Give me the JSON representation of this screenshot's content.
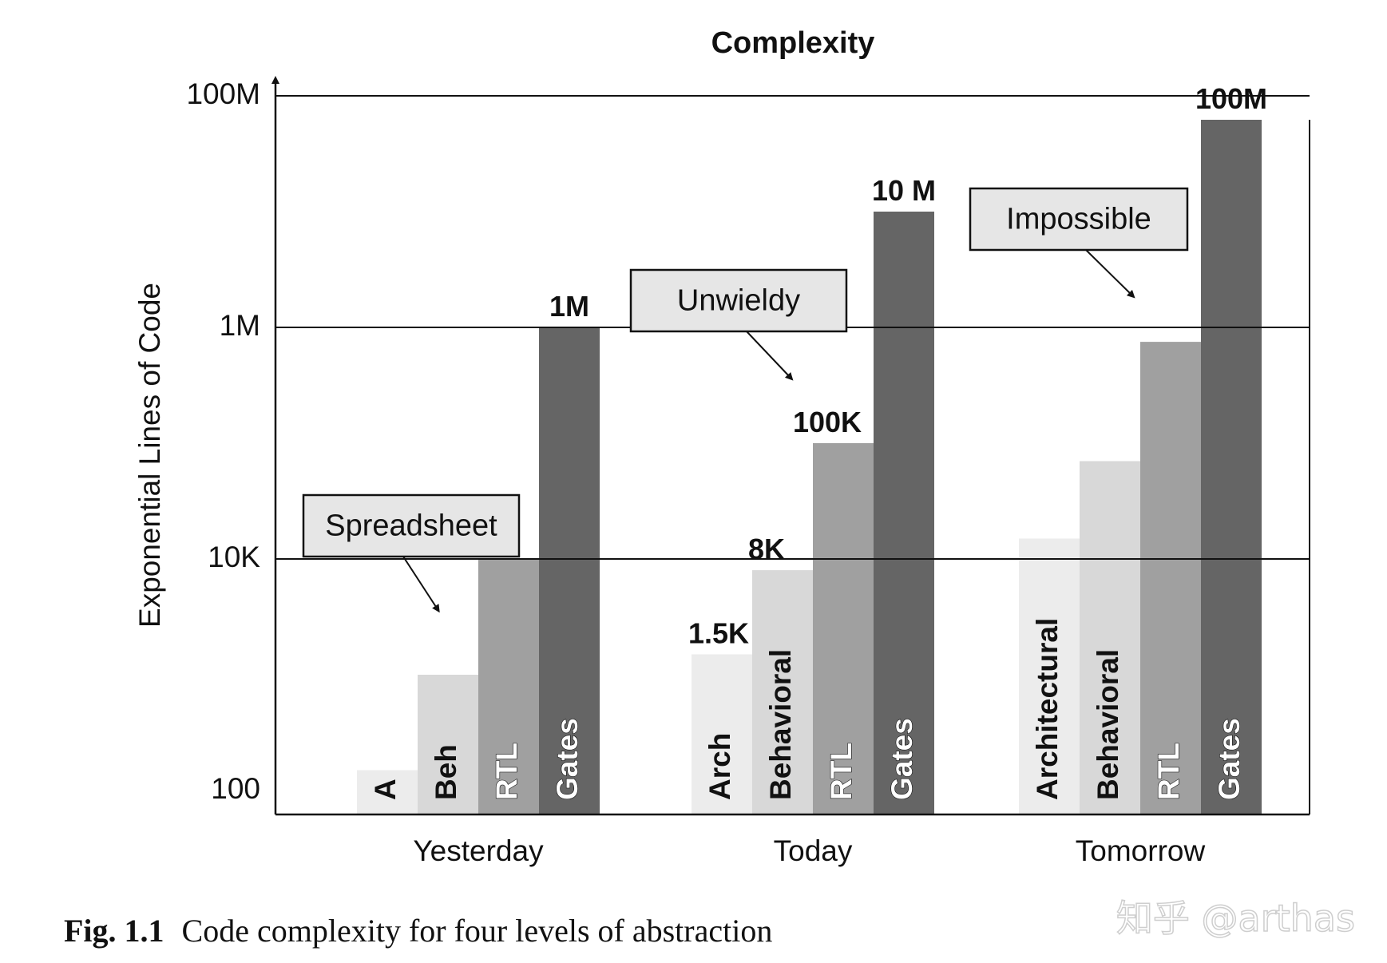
{
  "chart_data": {
    "type": "bar",
    "title": "Complexity",
    "ylabel": "Exponential Lines of Code",
    "xlabel": "",
    "yscale": "log",
    "ylim": [
      50,
      250000000
    ],
    "yticks": [
      {
        "value": 100,
        "label": "100"
      },
      {
        "value": 10000,
        "label": "10K"
      },
      {
        "value": 1000000,
        "label": "1M"
      },
      {
        "value": 100000000,
        "label": "100M"
      }
    ],
    "gridlines_at": [
      10000,
      1000000,
      100000000
    ],
    "categories": [
      "Yesterday",
      "Today",
      "Tomorrow"
    ],
    "series_colors": {
      "Architectural": "#ececec",
      "Behavioral": "#d8d8d8",
      "RTL": "#a0a0a0",
      "Gates": "#656565"
    },
    "groups": [
      {
        "category": "Yesterday",
        "bars": [
          {
            "level": "Architectural",
            "label": "A",
            "value": 150,
            "value_label": ""
          },
          {
            "level": "Behavioral",
            "label": "Beh",
            "value": 1000,
            "value_label": ""
          },
          {
            "level": "RTL",
            "label": "RTL",
            "value": 10000,
            "value_label": ""
          },
          {
            "level": "Gates",
            "label": "Gates",
            "value": 1000000,
            "value_label": "1M"
          }
        ]
      },
      {
        "category": "Today",
        "bars": [
          {
            "level": "Architectural",
            "label": "Arch",
            "value": 1500,
            "value_label": "1.5K"
          },
          {
            "level": "Behavioral",
            "label": "Behavioral",
            "value": 8000,
            "value_label": "8K"
          },
          {
            "level": "RTL",
            "label": "RTL",
            "value": 100000,
            "value_label": "100K"
          },
          {
            "level": "Gates",
            "label": "Gates",
            "value": 10000000,
            "value_label": "10 M"
          }
        ]
      },
      {
        "category": "Tomorrow",
        "bars": [
          {
            "level": "Architectural",
            "label": "Architectural",
            "value": 15000,
            "value_label": ""
          },
          {
            "level": "Behavioral",
            "label": "Behavioral",
            "value": 70000,
            "value_label": ""
          },
          {
            "level": "RTL",
            "label": "RTL",
            "value": 750000,
            "value_label": ""
          },
          {
            "level": "Gates",
            "label": "Gates",
            "value": 100000000,
            "value_label": "100M"
          }
        ]
      }
    ],
    "annotations": [
      {
        "text": "Spreadsheet",
        "points_to": "Yesterday RTL"
      },
      {
        "text": "Unwieldy",
        "points_to": "Today Gates"
      },
      {
        "text": "Impossible",
        "points_to": "Tomorrow Gates"
      }
    ]
  },
  "caption": {
    "fig_label": "Fig. 1.1",
    "text": "Code complexity for four levels of abstraction"
  },
  "watermark": "知乎 @arthas"
}
